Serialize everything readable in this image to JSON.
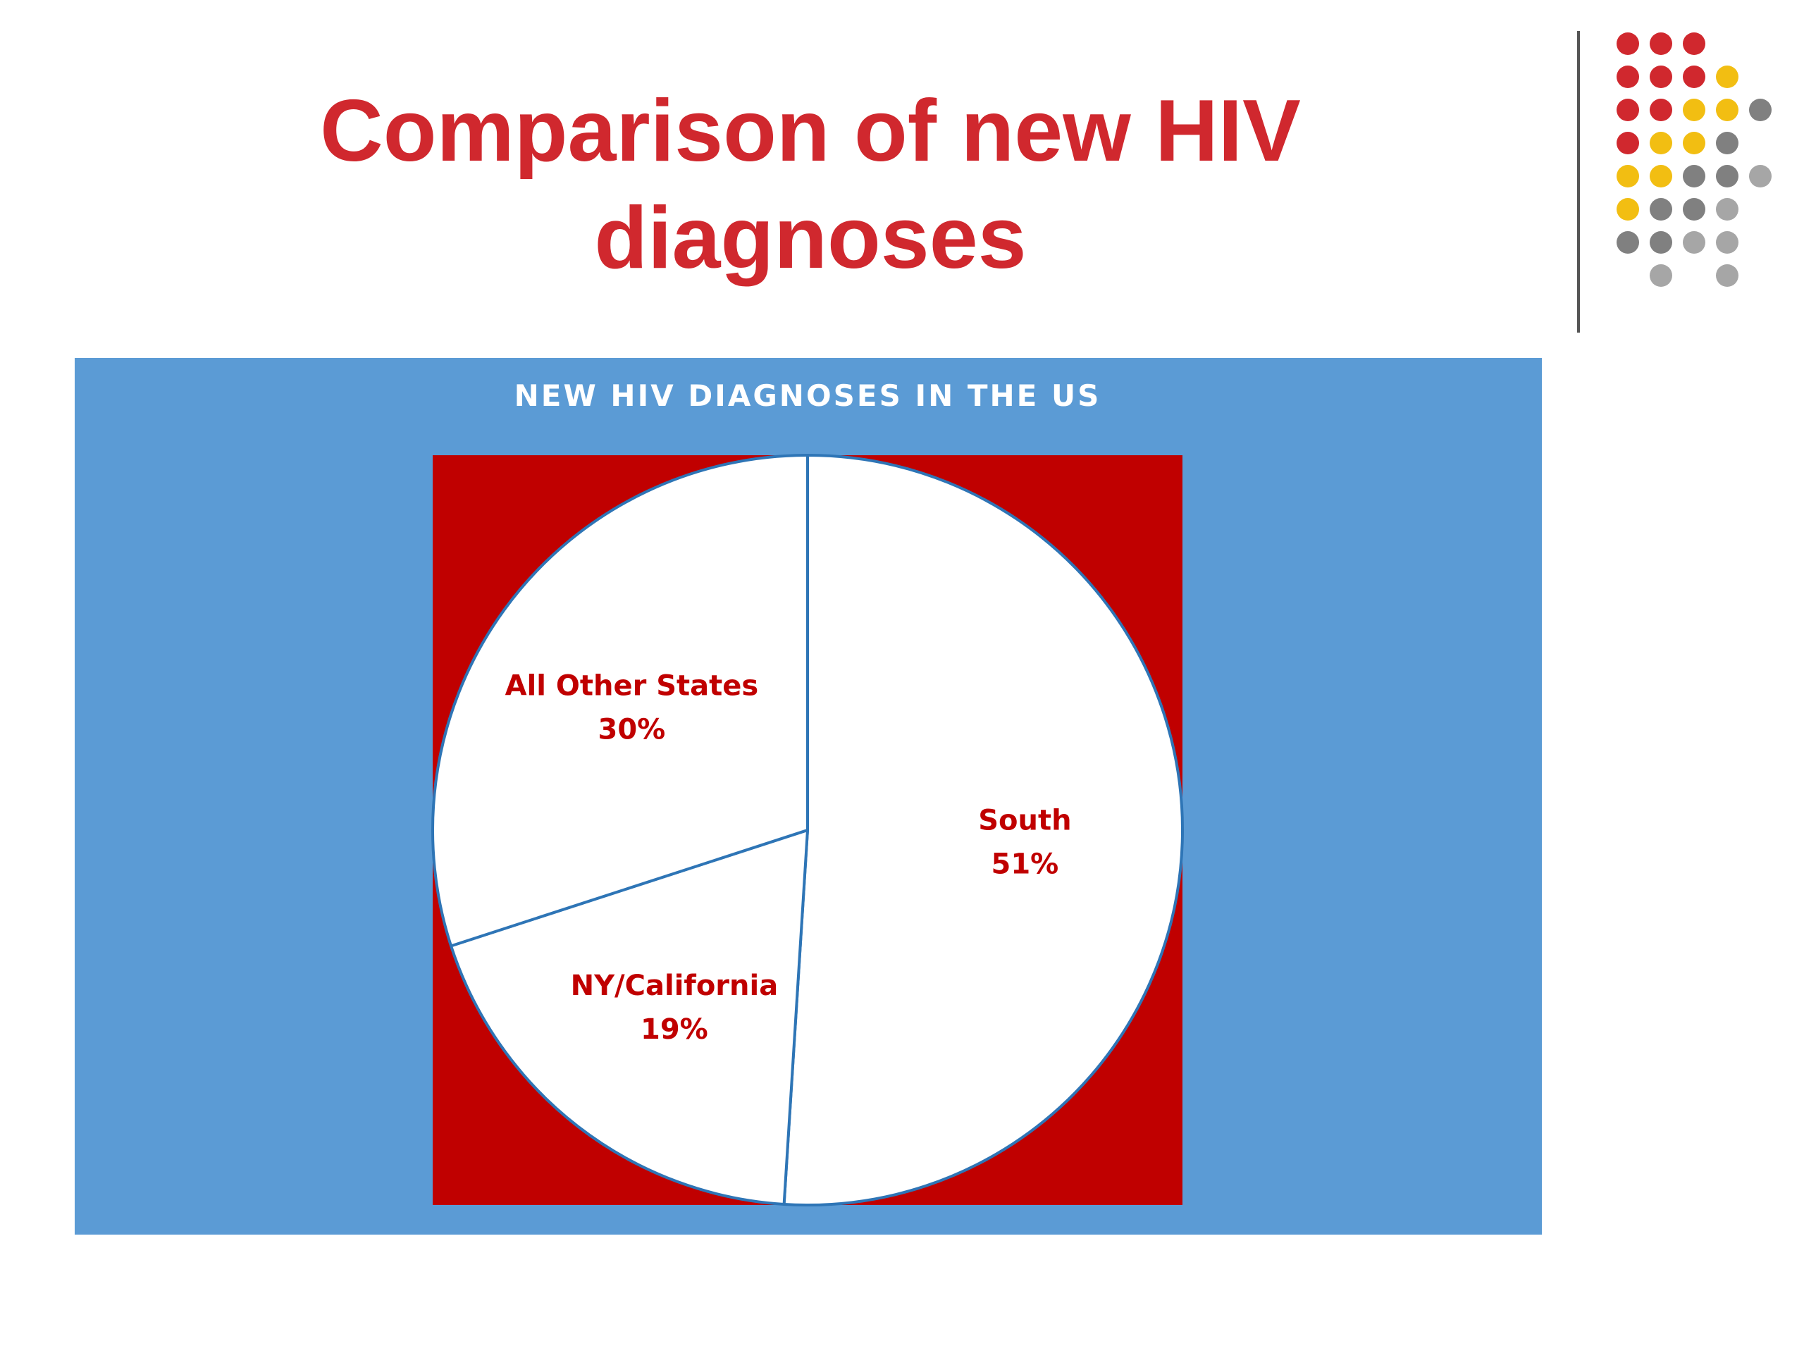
{
  "slide": {
    "title_lines": [
      "Comparison of new HIV",
      "diagnoses"
    ],
    "title_color": "#D0282E"
  },
  "decoration": {
    "dot_colors": {
      "red": "#D0282E",
      "yellow": "#F2BE12",
      "dark_gray": "#808080",
      "light_gray": "#A6A6A6"
    }
  },
  "chart_data": {
    "type": "pie",
    "title": "NEW HIV DIAGNOSES IN THE US",
    "legend": "none",
    "data_labels": "inside",
    "start_angle_deg": 0,
    "direction": "clockwise",
    "slices": [
      {
        "label": "South",
        "value": 51,
        "value_label": "51%"
      },
      {
        "label": "NY/California",
        "value": 19,
        "value_label": "19%"
      },
      {
        "label": "All Other States",
        "value": 30,
        "value_label": "30%"
      }
    ],
    "colors": {
      "panel_background": "#5B9BD5",
      "plot_background": "#C00000",
      "slice_fill": "#FFFFFF",
      "slice_border": "#2E75B6",
      "label_color": "#C00000",
      "title_color": "#FFFFFF"
    }
  }
}
